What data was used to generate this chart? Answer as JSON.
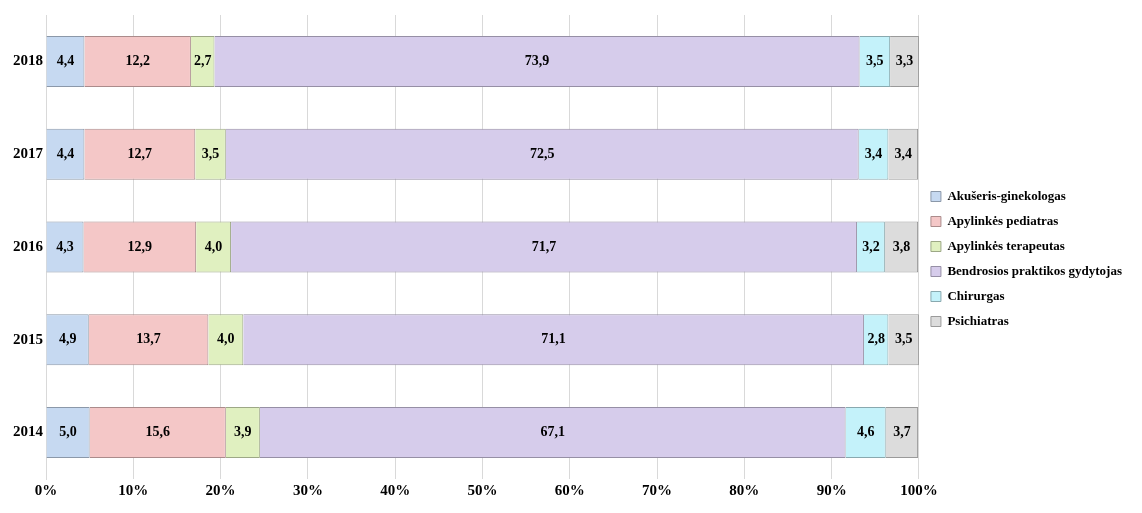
{
  "chart_data": {
    "type": "bar",
    "orientation": "horizontal",
    "stacked": true,
    "categories": [
      "2018",
      "2017",
      "2016",
      "2015",
      "2014"
    ],
    "series": [
      {
        "name": "Akušeris-ginekologas",
        "color": "#c6d9f1",
        "values": [
          4.4,
          4.4,
          4.3,
          4.9,
          5.0
        ],
        "value_labels": [
          "4,4",
          "4,4",
          "4,3",
          "4,9",
          "5,0"
        ]
      },
      {
        "name": "Apylinkės pediatras",
        "color": "#f4c7c7",
        "values": [
          12.2,
          12.7,
          12.9,
          13.7,
          15.6
        ],
        "value_labels": [
          "12,2",
          "12,7",
          "12,9",
          "13,7",
          "15,6"
        ]
      },
      {
        "name": "Apylinkės terapeutas",
        "color": "#e0f0c0",
        "values": [
          2.7,
          3.5,
          4.0,
          4.0,
          3.9
        ],
        "value_labels": [
          "2,7",
          "3,5",
          "4,0",
          "4,0",
          "3,9"
        ]
      },
      {
        "name": "Bendrosios praktikos gydytojas",
        "color": "#d6cceb",
        "values": [
          73.9,
          72.5,
          71.7,
          71.1,
          67.1
        ],
        "value_labels": [
          "73,9",
          "72,5",
          "71,7",
          "71,1",
          "67,1"
        ]
      },
      {
        "name": "Chirurgas",
        "color": "#c4f2fa",
        "values": [
          3.5,
          3.4,
          3.2,
          2.8,
          4.6
        ],
        "value_labels": [
          "3,5",
          "3,4",
          "3,2",
          "2,8",
          "4,6"
        ]
      },
      {
        "name": "Psichiatras",
        "color": "#dcdcdc",
        "values": [
          3.3,
          3.4,
          3.8,
          3.5,
          3.7
        ],
        "value_labels": [
          "3,3",
          "3,4",
          "3,8",
          "3,5",
          "3,7"
        ]
      }
    ],
    "xlim": [
      0,
      100
    ],
    "xticks": [
      {
        "value": 0,
        "label": "0%"
      },
      {
        "value": 10,
        "label": "10%"
      },
      {
        "value": 20,
        "label": "20%"
      },
      {
        "value": 30,
        "label": "30%"
      },
      {
        "value": 40,
        "label": "40%"
      },
      {
        "value": 50,
        "label": "50%"
      },
      {
        "value": 60,
        "label": "60%"
      },
      {
        "value": 70,
        "label": "70%"
      },
      {
        "value": 80,
        "label": "80%"
      },
      {
        "value": 90,
        "label": "90%"
      },
      {
        "value": 100,
        "label": "100%"
      }
    ],
    "grid": "x",
    "legend": "right"
  }
}
